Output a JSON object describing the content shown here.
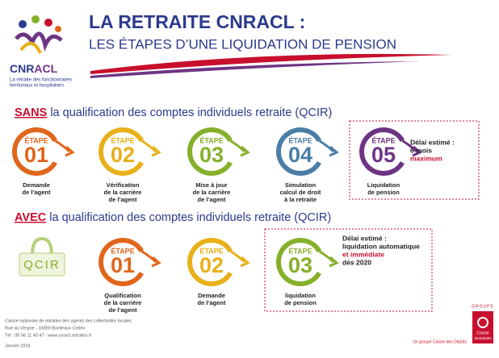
{
  "header": {
    "title": "LA RETRAITE CNRACL :",
    "subtitle": "LES ÉTAPES D’UNE LIQUIDATION DE PENSION"
  },
  "logo": {
    "name_a": "CNR",
    "name_b": "ACL",
    "tagline": [
      "La retraite des fonctionnaires",
      "territoriaux et hospitaliers"
    ]
  },
  "sections": [
    {
      "keyword": "SANS",
      "heading": "la qualification des comptes individuels retraite (QCIR)",
      "steps": [
        {
          "label": "ÉTAPE",
          "number": "01",
          "color": "#e0661c",
          "caption": [
            "Demande",
            "de l’agent"
          ]
        },
        {
          "label": "ÉTAPE",
          "number": "02",
          "color": "#e8b019",
          "caption": [
            "Vérification",
            "de la carrière",
            "de l’agent"
          ]
        },
        {
          "label": "ÉTAPE",
          "number": "03",
          "color": "#86b02a",
          "caption": [
            "Mise à jour",
            "de la carrière",
            "de l’agent"
          ]
        },
        {
          "label": "ÉTAPE",
          "number": "04",
          "color": "#4a7ea6",
          "caption": [
            "Simulation",
            "calcul de droit",
            "à la retraite"
          ]
        },
        {
          "label": "ÉTAPE",
          "number": "05",
          "color": "#6e3484",
          "caption": [
            "Liquidation",
            "de pension"
          ]
        }
      ],
      "note": [
        {
          "text": "Délai estimé :",
          "color": "#222"
        },
        {
          "text": "6 mois",
          "color": "#222"
        },
        {
          "text": "maximum",
          "color": "#c8102e"
        }
      ]
    },
    {
      "keyword": "AVEC",
      "heading": "la qualification des comptes individuels retraite (QCIR)",
      "badge": "QCIR",
      "steps": [
        {
          "label": "ÉTAPE",
          "number": "01",
          "color": "#e0661c",
          "caption": [
            "Qualification",
            "de la carrière",
            "de l’agent"
          ]
        },
        {
          "label": "ÉTAPE",
          "number": "02",
          "color": "#e8b019",
          "caption": [
            "Demande",
            "de l’agent"
          ]
        },
        {
          "label": "ÉTAPE",
          "number": "03",
          "color": "#86b02a",
          "caption": [
            "liquidation",
            "de pension"
          ]
        }
      ],
      "note": [
        {
          "text": "Délai estimé :",
          "color": "#222"
        },
        {
          "text": "liquidation automatique",
          "color": "#222"
        },
        {
          "text": "et immédiate",
          "color": "#c8102e"
        },
        {
          "text": "dès 2020",
          "color": "#222"
        }
      ]
    }
  ],
  "footer": {
    "lines": [
      "Caisse nationale de retraites des agents des collectivités locales",
      "Rue du Vergne - 33059 Bordeaux Cedex",
      "Tél : 05 56 11 40 47 - www.cnracl.retraites.fr",
      "Janvier 2019"
    ],
    "group": "GROUPE",
    "group_note": "Un groupe Caisse des Dépôts",
    "brand_a": "Caisse",
    "brand_b": "desDépôts"
  }
}
